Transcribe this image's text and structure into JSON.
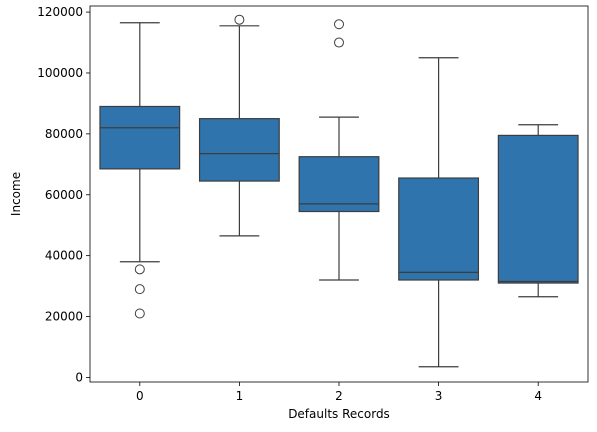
{
  "chart_data": {
    "type": "box",
    "xlabel": "Defaults Records",
    "ylabel": "Income",
    "categories": [
      "0",
      "1",
      "2",
      "3",
      "4"
    ],
    "ylim": [
      -1500,
      122000
    ],
    "yticks": [
      0,
      20000,
      40000,
      60000,
      80000,
      100000,
      120000
    ],
    "box_color": "#2f74ad",
    "line_color": "#3d3d3d",
    "grid": false,
    "legend": "none",
    "boxes": [
      {
        "category": "0",
        "whisker_low": 38000,
        "q1": 68500,
        "median": 82000,
        "q3": 89000,
        "whisker_high": 116500,
        "outliers": [
          35500,
          29000,
          21000
        ]
      },
      {
        "category": "1",
        "whisker_low": 46500,
        "q1": 64500,
        "median": 73500,
        "q3": 85000,
        "whisker_high": 115500,
        "outliers": [
          117500
        ]
      },
      {
        "category": "2",
        "whisker_low": 32000,
        "q1": 54500,
        "median": 57000,
        "q3": 72500,
        "whisker_high": 85500,
        "outliers": [
          116000,
          110000
        ]
      },
      {
        "category": "3",
        "whisker_low": 3500,
        "q1": 32000,
        "median": 34500,
        "q3": 65500,
        "whisker_high": 105000,
        "outliers": []
      },
      {
        "category": "4",
        "whisker_low": 26500,
        "q1": 31000,
        "median": 31500,
        "q3": 79500,
        "whisker_high": 83000,
        "outliers": []
      }
    ]
  }
}
